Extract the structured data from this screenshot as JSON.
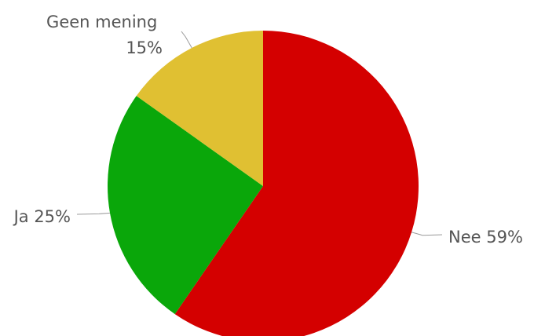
{
  "chart_data": {
    "type": "pie",
    "title": "",
    "slices": [
      {
        "label": "Nee",
        "value": 59,
        "display": "Nee 59%",
        "color": "#d40000"
      },
      {
        "label": "Ja",
        "value": 25,
        "display": "Ja 25%",
        "color": "#0aa70a"
      },
      {
        "label": "Geen mening",
        "value": 15,
        "display_lines": [
          "Geen mening",
          "15%"
        ],
        "color": "#e0c032"
      }
    ],
    "start_angle": "12 o'clock",
    "direction": "clockwise",
    "legend": "none",
    "data_labels": "outside with leader lines"
  }
}
